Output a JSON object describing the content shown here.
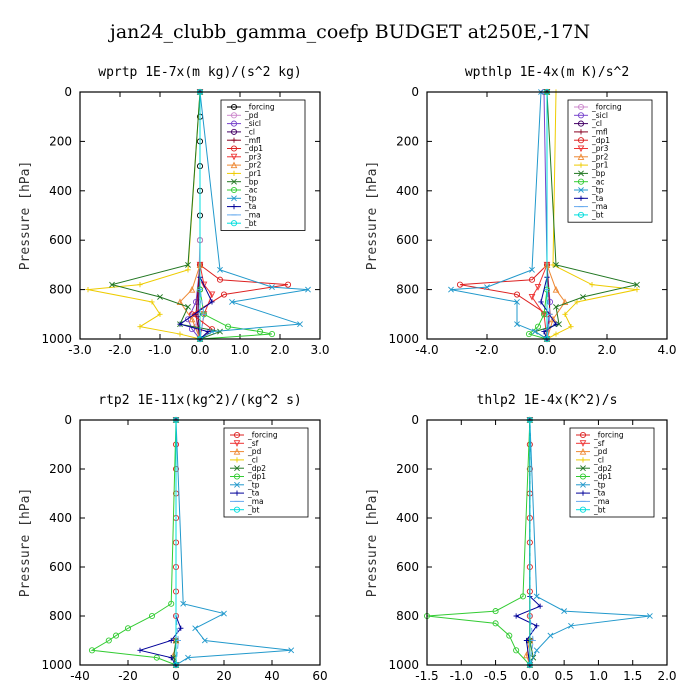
{
  "figure": {
    "title": "jan24_clubb_gamma_coefp  BUDGET at250E,-17N"
  },
  "chart_data": [
    {
      "type": "line",
      "title": "wprtp  1E-7x(m kg)/(s^2 kg)",
      "ylabel": "Pressure [hPa]",
      "xlim": [
        -3.0,
        3.0
      ],
      "ylim": [
        1000,
        0
      ],
      "xticks": [
        -3.0,
        -2.0,
        -1.0,
        0.0,
        1.0,
        2.0,
        3.0
      ],
      "xtick_labels": [
        "-3.0",
        "-2.0",
        "-1.0",
        "0.0",
        "1.0",
        "2.0",
        "3.0"
      ],
      "yticks": [
        0,
        200,
        400,
        600,
        800,
        1000
      ],
      "ytick_labels": [
        "0",
        "200",
        "400",
        "600",
        "800",
        "1000"
      ],
      "legend": {
        "position": "top-right"
      },
      "series": [
        {
          "name": "_forcing",
          "color": "#000000",
          "marker": "o",
          "x": [
            0,
            0,
            0,
            0,
            0,
            0,
            0,
            0,
            0,
            0
          ],
          "y": [
            0,
            100,
            200,
            300,
            400,
            500,
            600,
            700,
            800,
            1000
          ]
        },
        {
          "name": "_pd",
          "color": "#cc88cc",
          "marker": "o",
          "x": [
            0,
            0,
            -0.05,
            -0.1,
            0
          ],
          "y": [
            0,
            600,
            850,
            950,
            1000
          ]
        },
        {
          "name": "_sicl",
          "color": "#7744cc",
          "marker": "o",
          "x": [
            0,
            0,
            -0.1,
            -0.3,
            -0.2,
            0
          ],
          "y": [
            0,
            700,
            850,
            920,
            960,
            1000
          ]
        },
        {
          "name": "_cl",
          "color": "#440066",
          "marker": "o",
          "x": [
            0,
            0,
            -0.05,
            0
          ],
          "y": [
            0,
            700,
            900,
            1000
          ]
        },
        {
          "name": "_mfl",
          "color": "#880022",
          "marker": "+",
          "x": [
            0,
            0,
            -0.1,
            0
          ],
          "y": [
            0,
            700,
            900,
            1000
          ]
        },
        {
          "name": "_dp1",
          "color": "#dd2222",
          "marker": "o",
          "x": [
            0,
            0,
            0.5,
            2.2,
            0.6,
            -0.2,
            0.3,
            0
          ],
          "y": [
            0,
            700,
            760,
            780,
            820,
            900,
            960,
            1000
          ]
        },
        {
          "name": "_pr3",
          "color": "#ee3333",
          "marker": "v",
          "x": [
            0,
            0,
            0.1,
            0.3,
            0.1,
            0
          ],
          "y": [
            0,
            700,
            780,
            820,
            900,
            1000
          ]
        },
        {
          "name": "_pr2",
          "color": "#ee8833",
          "marker": "^",
          "x": [
            0,
            0,
            -0.2,
            -0.5,
            -0.2,
            0
          ],
          "y": [
            0,
            700,
            800,
            850,
            920,
            1000
          ]
        },
        {
          "name": "_pr1",
          "color": "#eecc00",
          "marker": "+",
          "x": [
            0,
            -0.3,
            -1.5,
            -2.8,
            -1.2,
            -1.0,
            -1.5,
            -0.5,
            0
          ],
          "y": [
            0,
            720,
            780,
            800,
            850,
            900,
            950,
            980,
            1000
          ]
        },
        {
          "name": "_bp",
          "color": "#227722",
          "marker": "x",
          "x": [
            0,
            -0.3,
            -2.2,
            -1.0,
            -0.3,
            -0.5,
            0.5,
            0
          ],
          "y": [
            0,
            700,
            780,
            830,
            870,
            940,
            970,
            1000
          ]
        },
        {
          "name": "_ac",
          "color": "#33cc33",
          "marker": "o",
          "x": [
            0,
            0,
            0.1,
            0.7,
            1.5,
            1.8,
            0
          ],
          "y": [
            0,
            800,
            900,
            950,
            970,
            980,
            1000
          ]
        },
        {
          "name": "_tp",
          "color": "#2299cc",
          "marker": "x",
          "x": [
            0,
            0.5,
            1.8,
            2.7,
            0.8,
            2.5,
            0.3,
            0
          ],
          "y": [
            0,
            720,
            790,
            800,
            850,
            940,
            970,
            1000
          ]
        },
        {
          "name": "_ta",
          "color": "#000099",
          "marker": "+",
          "x": [
            0,
            0,
            0.3,
            -0.5,
            0.2,
            0
          ],
          "y": [
            0,
            750,
            850,
            940,
            970,
            1000
          ]
        },
        {
          "name": "_ma",
          "color": "#66aaee",
          "marker": "-",
          "x": [
            0,
            0,
            0.1,
            0
          ],
          "y": [
            0,
            800,
            900,
            1000
          ]
        },
        {
          "name": "_bt",
          "color": "#00dddd",
          "marker": "o",
          "x": [
            0,
            0
          ],
          "y": [
            0,
            1000
          ]
        }
      ]
    },
    {
      "type": "line",
      "title": "wpthlp  1E-4x(m K)/s^2",
      "ylabel": "Pressure [hPa]",
      "xlim": [
        -4.0,
        4.0
      ],
      "ylim": [
        1000,
        0
      ],
      "xticks": [
        -4.0,
        -2.0,
        0.0,
        2.0,
        4.0
      ],
      "xtick_labels": [
        "-4.0",
        "-2.0",
        "0.0",
        "2.0",
        "4.0"
      ],
      "yticks": [
        0,
        200,
        400,
        600,
        800,
        1000
      ],
      "ytick_labels": [
        "0",
        "200",
        "400",
        "600",
        "800",
        "1000"
      ],
      "legend": {
        "position": "top-right"
      },
      "series": [
        {
          "name": "_forcing",
          "color": "#cc88cc",
          "marker": "o",
          "x": [
            0,
            0
          ],
          "y": [
            0,
            1000
          ]
        },
        {
          "name": "_sicl",
          "color": "#7744cc",
          "marker": "o",
          "x": [
            -0.1,
            0,
            0.1,
            0
          ],
          "y": [
            0,
            700,
            850,
            1000
          ]
        },
        {
          "name": "_cl",
          "color": "#440066",
          "marker": "o",
          "x": [
            0,
            0
          ],
          "y": [
            0,
            1000
          ]
        },
        {
          "name": "_mfl",
          "color": "#880022",
          "marker": "+",
          "x": [
            0,
            0,
            0.1,
            0
          ],
          "y": [
            0,
            700,
            900,
            1000
          ]
        },
        {
          "name": "_dp1",
          "color": "#dd2222",
          "marker": "o",
          "x": [
            0,
            0,
            -0.5,
            -2.9,
            -1.0,
            0,
            0
          ],
          "y": [
            0,
            700,
            760,
            780,
            820,
            900,
            1000
          ]
        },
        {
          "name": "_pr3",
          "color": "#ee3333",
          "marker": "v",
          "x": [
            0,
            0,
            -0.3,
            -0.5,
            -0.1,
            0
          ],
          "y": [
            0,
            700,
            790,
            830,
            900,
            1000
          ]
        },
        {
          "name": "_pr2",
          "color": "#ee8833",
          "marker": "^",
          "x": [
            0,
            0,
            0.3,
            0.6,
            0.2,
            0
          ],
          "y": [
            0,
            700,
            800,
            850,
            920,
            1000
          ]
        },
        {
          "name": "_pr1",
          "color": "#eecc00",
          "marker": "+",
          "x": [
            0.3,
            0.2,
            1.5,
            3.0,
            1.0,
            0.6,
            0.8,
            0.3,
            0
          ],
          "y": [
            0,
            700,
            780,
            800,
            850,
            900,
            950,
            980,
            1000
          ]
        },
        {
          "name": "_bp",
          "color": "#227722",
          "marker": "x",
          "x": [
            0,
            0.3,
            3.0,
            1.2,
            0.3,
            0.4,
            -0.4,
            0
          ],
          "y": [
            0,
            700,
            780,
            830,
            870,
            940,
            970,
            1000
          ]
        },
        {
          "name": "_ac",
          "color": "#33cc33",
          "marker": "o",
          "x": [
            0,
            0,
            -0.1,
            -0.3,
            -0.6,
            0
          ],
          "y": [
            0,
            800,
            900,
            950,
            980,
            1000
          ]
        },
        {
          "name": "_tp",
          "color": "#2299cc",
          "marker": "x",
          "x": [
            -0.2,
            -0.5,
            -2.0,
            -3.2,
            -1.0,
            -1.0,
            -0.4,
            0
          ],
          "y": [
            0,
            720,
            790,
            800,
            850,
            940,
            970,
            1000
          ]
        },
        {
          "name": "_ta",
          "color": "#000099",
          "marker": "+",
          "x": [
            0,
            0,
            -0.2,
            0.3,
            -0.1,
            0
          ],
          "y": [
            0,
            750,
            850,
            940,
            970,
            1000
          ]
        },
        {
          "name": "_ma",
          "color": "#66aaee",
          "marker": "-",
          "x": [
            0,
            0,
            0.1,
            0
          ],
          "y": [
            0,
            800,
            900,
            1000
          ]
        },
        {
          "name": "_bt",
          "color": "#00dddd",
          "marker": "o",
          "x": [
            0,
            0
          ],
          "y": [
            0,
            1000
          ]
        }
      ]
    },
    {
      "type": "line",
      "title": "rtp2  1E-11x(kg^2)/(kg^2 s)",
      "ylabel": "Pressure [hPa]",
      "xlim": [
        -40,
        60
      ],
      "ylim": [
        1000,
        0
      ],
      "xticks": [
        -40,
        -20,
        0,
        20,
        40,
        60
      ],
      "xtick_labels": [
        "-40",
        "-20",
        "0",
        "20",
        "40",
        "60"
      ],
      "yticks": [
        0,
        200,
        400,
        600,
        800,
        1000
      ],
      "ytick_labels": [
        "0",
        "200",
        "400",
        "600",
        "800",
        "1000"
      ],
      "legend": {
        "position": "top-right"
      },
      "series": [
        {
          "name": "_forcing",
          "color": "#dd2222",
          "marker": "o",
          "x": [
            0,
            0,
            0,
            0,
            0,
            0,
            0,
            0,
            0,
            0,
            0
          ],
          "y": [
            0,
            100,
            200,
            300,
            400,
            500,
            600,
            700,
            800,
            900,
            1000
          ]
        },
        {
          "name": "_sf",
          "color": "#ee3333",
          "marker": "v",
          "x": [
            0,
            0
          ],
          "y": [
            0,
            1000
          ]
        },
        {
          "name": "_pd",
          "color": "#ee8833",
          "marker": "^",
          "x": [
            0,
            0,
            -1,
            0
          ],
          "y": [
            0,
            900,
            960,
            1000
          ]
        },
        {
          "name": "_cl",
          "color": "#eecc00",
          "marker": "+",
          "x": [
            0,
            0
          ],
          "y": [
            0,
            1000
          ]
        },
        {
          "name": "_dp2",
          "color": "#227722",
          "marker": "x",
          "x": [
            0,
            0,
            -1,
            0
          ],
          "y": [
            0,
            900,
            970,
            1000
          ]
        },
        {
          "name": "_dp1",
          "color": "#33cc33",
          "marker": "o",
          "x": [
            0,
            -2,
            -10,
            -20,
            -25,
            -28,
            -35,
            -8,
            0
          ],
          "y": [
            0,
            750,
            800,
            850,
            880,
            900,
            940,
            970,
            1000
          ]
        },
        {
          "name": "_tp",
          "color": "#2299cc",
          "marker": "x",
          "x": [
            0,
            3,
            20,
            8,
            12,
            48,
            5,
            0
          ],
          "y": [
            0,
            750,
            790,
            850,
            900,
            940,
            970,
            1000
          ]
        },
        {
          "name": "_ta",
          "color": "#000099",
          "marker": "+",
          "x": [
            0,
            0,
            2,
            -2,
            -15,
            -2,
            0
          ],
          "y": [
            0,
            800,
            850,
            900,
            940,
            970,
            1000
          ]
        },
        {
          "name": "_ma",
          "color": "#66aaee",
          "marker": "-",
          "x": [
            0,
            0,
            1,
            0
          ],
          "y": [
            0,
            800,
            900,
            1000
          ]
        },
        {
          "name": "_bt",
          "color": "#00dddd",
          "marker": "o",
          "x": [
            0,
            0
          ],
          "y": [
            0,
            1000
          ]
        }
      ]
    },
    {
      "type": "line",
      "title": "thlp2  1E-4x(K^2)/s",
      "ylabel": "Pressure [hPa]",
      "xlim": [
        -1.5,
        2.0
      ],
      "ylim": [
        1000,
        0
      ],
      "xticks": [
        -1.5,
        -1.0,
        -0.5,
        0.0,
        0.5,
        1.0,
        1.5,
        2.0
      ],
      "xtick_labels": [
        "-1.5",
        "-1.0",
        "-0.5",
        "0.0",
        "0.5",
        "1.0",
        "1.5",
        "2.0"
      ],
      "yticks": [
        0,
        200,
        400,
        600,
        800,
        1000
      ],
      "ytick_labels": [
        "0",
        "200",
        "400",
        "600",
        "800",
        "1000"
      ],
      "legend": {
        "position": "top-right"
      },
      "series": [
        {
          "name": "_forcing",
          "color": "#dd2222",
          "marker": "o",
          "x": [
            0,
            0,
            0,
            0,
            0,
            0,
            0,
            0,
            0,
            0,
            0
          ],
          "y": [
            0,
            100,
            200,
            300,
            400,
            500,
            600,
            700,
            800,
            900,
            1000
          ]
        },
        {
          "name": "_sf",
          "color": "#ee3333",
          "marker": "v",
          "x": [
            0,
            0
          ],
          "y": [
            0,
            1000
          ]
        },
        {
          "name": "_pd",
          "color": "#ee8833",
          "marker": "^",
          "x": [
            0,
            0,
            -0.05,
            0
          ],
          "y": [
            0,
            900,
            960,
            1000
          ]
        },
        {
          "name": "_cl",
          "color": "#eecc00",
          "marker": "+",
          "x": [
            0,
            0
          ],
          "y": [
            0,
            1000
          ]
        },
        {
          "name": "_dp2",
          "color": "#227722",
          "marker": "x",
          "x": [
            0,
            0,
            0.05,
            0
          ],
          "y": [
            0,
            900,
            970,
            1000
          ]
        },
        {
          "name": "_dp1",
          "color": "#33cc33",
          "marker": "o",
          "x": [
            0,
            -0.1,
            -0.5,
            -1.5,
            -0.5,
            -0.3,
            -0.2,
            0
          ],
          "y": [
            0,
            720,
            780,
            800,
            830,
            880,
            940,
            1000
          ]
        },
        {
          "name": "_tp",
          "color": "#2299cc",
          "marker": "x",
          "x": [
            0,
            0.1,
            0.5,
            1.75,
            0.6,
            0.3,
            0.1,
            0
          ],
          "y": [
            0,
            720,
            780,
            800,
            840,
            880,
            940,
            1000
          ]
        },
        {
          "name": "_ta",
          "color": "#000099",
          "marker": "+",
          "x": [
            0,
            0,
            0.15,
            -0.2,
            0.1,
            -0.05,
            0
          ],
          "y": [
            0,
            720,
            760,
            800,
            840,
            900,
            1000
          ]
        },
        {
          "name": "_ma",
          "color": "#66aaee",
          "marker": "-",
          "x": [
            0,
            0,
            0.05,
            0
          ],
          "y": [
            0,
            800,
            900,
            1000
          ]
        },
        {
          "name": "_bt",
          "color": "#00dddd",
          "marker": "o",
          "x": [
            0,
            0
          ],
          "y": [
            0,
            1000
          ]
        }
      ]
    }
  ]
}
